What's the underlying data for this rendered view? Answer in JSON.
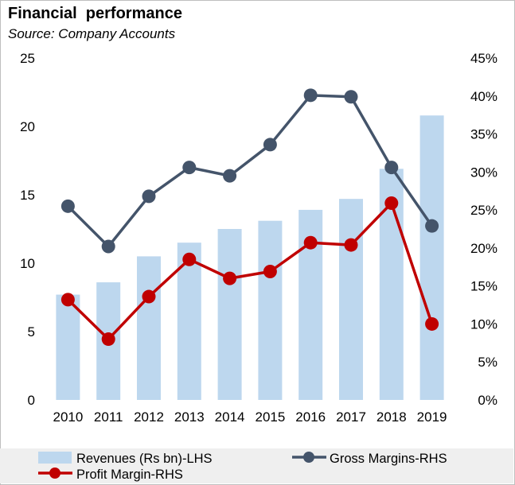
{
  "chart_data": {
    "type": "bar+line",
    "title": "Financial  performance",
    "subtitle": "Source: Company Accounts",
    "categories": [
      "2010",
      "2011",
      "2012",
      "2013",
      "2014",
      "2015",
      "2016",
      "2017",
      "2018",
      "2019"
    ],
    "left_axis": {
      "ylim": [
        0,
        25
      ],
      "ticks": [
        0,
        5,
        10,
        15,
        20,
        25
      ],
      "tick_labels": [
        "0",
        "5",
        "10",
        "15",
        "20",
        "25"
      ]
    },
    "right_axis": {
      "ylim": [
        0,
        45
      ],
      "ticks": [
        0,
        5,
        10,
        15,
        20,
        25,
        30,
        35,
        40,
        45
      ],
      "tick_labels": [
        "0%",
        "5%",
        "10%",
        "15%",
        "20%",
        "25%",
        "30%",
        "35%",
        "40%",
        "45%"
      ]
    },
    "series": [
      {
        "name": "Revenues (Rs bn)-LHS",
        "kind": "bar",
        "axis": "left",
        "color": "#bdd7ee",
        "values": [
          7.7,
          8.6,
          10.5,
          11.5,
          12.5,
          13.1,
          13.9,
          14.7,
          16.9,
          20.8
        ]
      },
      {
        "name": "Gross Margins-RHS",
        "kind": "line",
        "axis": "right",
        "color": "#44546a",
        "values": [
          25.5,
          20.2,
          26.8,
          30.6,
          29.5,
          33.6,
          40.1,
          39.9,
          30.6,
          22.9
        ]
      },
      {
        "name": "Profit Margin-RHS",
        "kind": "line",
        "axis": "right",
        "color": "#c00000",
        "values": [
          13.2,
          8.0,
          13.6,
          18.5,
          16.0,
          16.9,
          20.7,
          20.4,
          25.9,
          10.0
        ]
      }
    ],
    "legend": {
      "position": "bottom"
    },
    "grid": false
  }
}
